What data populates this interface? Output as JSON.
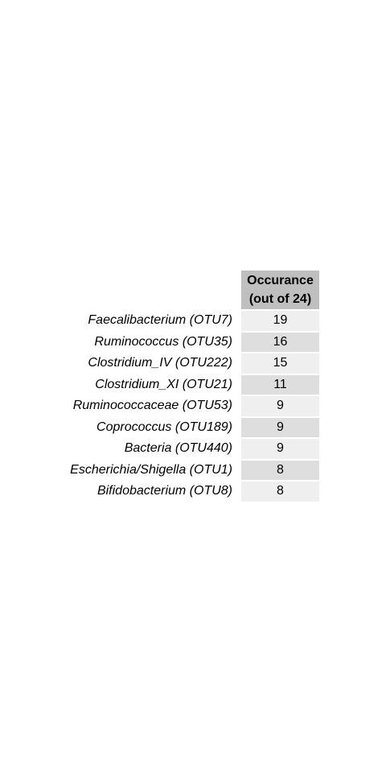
{
  "table": {
    "header_line1": "Occurance",
    "header_line2": "(out of 24)"
  },
  "colors": {
    "header_bg": "#bfbfbf",
    "row_bg_light": "#efefef",
    "row_bg_dark": "#dedede"
  },
  "chart_data": {
    "type": "table",
    "columns": [
      "",
      "Occurance (out of 24)"
    ],
    "rows": [
      {
        "label": "Faecalibacterium (OTU7)",
        "value": 19
      },
      {
        "label": "Ruminococcus (OTU35)",
        "value": 16
      },
      {
        "label": "Clostridium_IV (OTU222)",
        "value": 15
      },
      {
        "label": "Clostridium_XI (OTU21)",
        "value": 11
      },
      {
        "label": "Ruminococcaceae (OTU53)",
        "value": 9
      },
      {
        "label": "Coprococcus (OTU189)",
        "value": 9
      },
      {
        "label": "Bacteria (OTU440)",
        "value": 9
      },
      {
        "label": "Escherichia/Shigella (OTU1)",
        "value": 8
      },
      {
        "label": "Bifidobacterium (OTU8)",
        "value": 8
      }
    ]
  }
}
